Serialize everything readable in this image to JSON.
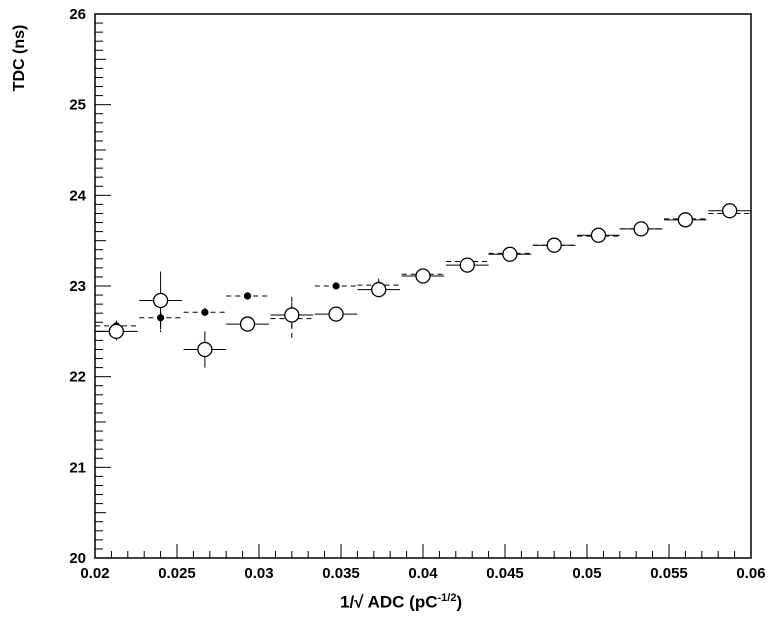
{
  "chart_data": {
    "type": "scatter",
    "title": "",
    "xlabel": "1/√ ADC (pC",
    "xlabel_exponent": "-1/2",
    "xlabel_close": ")",
    "ylabel": "TDC (ns)",
    "xlim": [
      0.02,
      0.06
    ],
    "ylim": [
      20,
      26
    ],
    "x_ticks": [
      "0.02",
      "0.025",
      "0.03",
      "0.035",
      "0.04",
      "0.045",
      "0.05",
      "0.055",
      "0.06"
    ],
    "y_ticks": [
      "20",
      "21",
      "22",
      "23",
      "24",
      "25",
      "26"
    ],
    "grid": false,
    "legend": "none",
    "series": [
      {
        "marker": "open-circle",
        "line_style": "solid",
        "color": "#000000",
        "points": [
          {
            "x": 0.0213,
            "y": 22.5,
            "xerr": 0.0013,
            "yerr": 0.1
          },
          {
            "x": 0.024,
            "y": 22.84,
            "xerr": 0.0013,
            "yerr": 0.32
          },
          {
            "x": 0.0267,
            "y": 22.3,
            "xerr": 0.0013,
            "yerr": 0.2
          },
          {
            "x": 0.0293,
            "y": 22.58,
            "xerr": 0.0013,
            "yerr": 0.08
          },
          {
            "x": 0.032,
            "y": 22.68,
            "xerr": 0.0013,
            "yerr": 0.14
          },
          {
            "x": 0.0347,
            "y": 22.69,
            "xerr": 0.0013,
            "yerr": 0.06
          },
          {
            "x": 0.0373,
            "y": 22.96,
            "xerr": 0.0013,
            "yerr": 0.06
          },
          {
            "x": 0.04,
            "y": 23.11,
            "xerr": 0.0013,
            "yerr": 0.04
          },
          {
            "x": 0.0427,
            "y": 23.23,
            "xerr": 0.0013,
            "yerr": 0.04
          },
          {
            "x": 0.0453,
            "y": 23.35,
            "xerr": 0.0013,
            "yerr": 0.04
          },
          {
            "x": 0.048,
            "y": 23.45,
            "xerr": 0.0013,
            "yerr": 0.03
          },
          {
            "x": 0.0507,
            "y": 23.56,
            "xerr": 0.0013,
            "yerr": 0.03
          },
          {
            "x": 0.0533,
            "y": 23.63,
            "xerr": 0.0013,
            "yerr": 0.03
          },
          {
            "x": 0.056,
            "y": 23.73,
            "xerr": 0.0013,
            "yerr": 0.03
          },
          {
            "x": 0.0587,
            "y": 23.83,
            "xerr": 0.0013,
            "yerr": 0.03
          }
        ]
      },
      {
        "marker": "filled-circle",
        "line_style": "dashed",
        "color": "#000000",
        "points": [
          {
            "x": 0.0213,
            "y": 22.56,
            "xerr": 0.0013,
            "yerr": 0.06
          },
          {
            "x": 0.024,
            "y": 22.65,
            "xerr": 0.0013,
            "yerr": 0.16
          },
          {
            "x": 0.0267,
            "y": 22.71,
            "xerr": 0.0013,
            "yerr": 0.05
          },
          {
            "x": 0.0293,
            "y": 22.89,
            "xerr": 0.0013,
            "yerr": 0.04
          },
          {
            "x": 0.032,
            "y": 22.64,
            "xerr": 0.0013,
            "yerr": 0.24
          },
          {
            "x": 0.0347,
            "y": 23.0,
            "xerr": 0.0013,
            "yerr": 0.03
          },
          {
            "x": 0.0373,
            "y": 23.01,
            "xerr": 0.0013,
            "yerr": 0.07
          },
          {
            "x": 0.04,
            "y": 23.13,
            "xerr": 0.0013,
            "yerr": 0.04
          },
          {
            "x": 0.0427,
            "y": 23.27,
            "xerr": 0.0013,
            "yerr": 0.03
          },
          {
            "x": 0.0453,
            "y": 23.36,
            "xerr": 0.0013,
            "yerr": 0.03
          },
          {
            "x": 0.048,
            "y": 23.45,
            "xerr": 0.0013,
            "yerr": 0.03
          },
          {
            "x": 0.0507,
            "y": 23.55,
            "xerr": 0.0013,
            "yerr": 0.03
          },
          {
            "x": 0.0533,
            "y": 23.63,
            "xerr": 0.0013,
            "yerr": 0.03
          },
          {
            "x": 0.056,
            "y": 23.74,
            "xerr": 0.0013,
            "yerr": 0.03
          },
          {
            "x": 0.0587,
            "y": 23.8,
            "xerr": 0.0013,
            "yerr": 0.03
          }
        ]
      }
    ]
  }
}
